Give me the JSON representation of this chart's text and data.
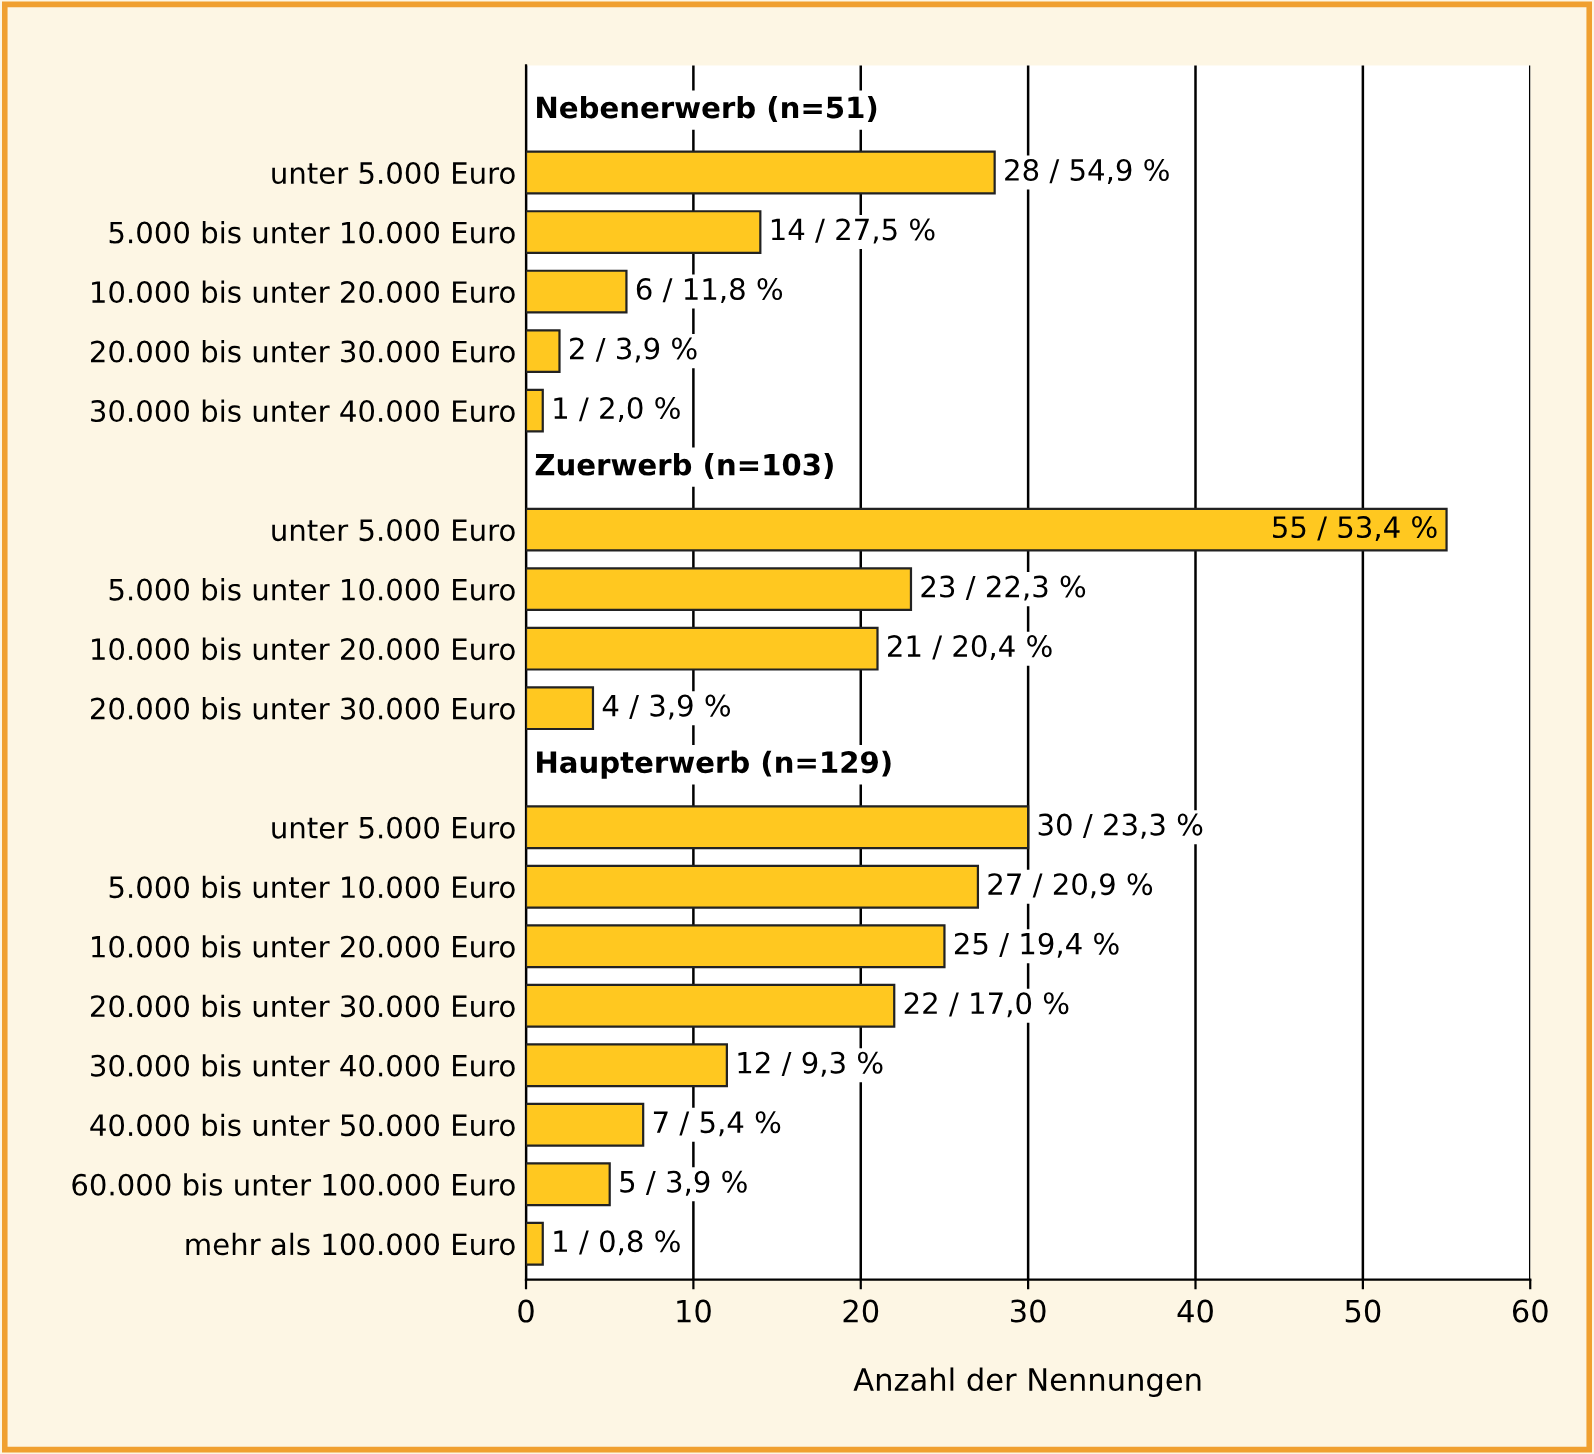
{
  "chart_data": {
    "type": "bar",
    "orientation": "horizontal",
    "xlabel": "Anzahl der Nennungen",
    "categories": [
      "Nebenerwerb (n=51)",
      "unter 5.000 Euro",
      "5.000 bis unter 10.000 Euro",
      "10.000 bis unter 20.000 Euro",
      "20.000 bis unter 30.000 Euro",
      "30.000 bis unter 40.000 Euro",
      "Zuerwerb (n=103)",
      "unter 5.000 Euro",
      "5.000 bis unter 10.000 Euro",
      "10.000 bis unter 20.000 Euro",
      "20.000 bis unter 30.000 Euro",
      "Haupterwerb (n=129)",
      "unter 5.000 Euro",
      "5.000 bis unter 10.000 Euro",
      "10.000 bis unter 20.000 Euro",
      "20.000 bis unter 30.000 Euro",
      "30.000 bis unter 40.000 Euro",
      "40.000 bis unter 50.000 Euro",
      "60.000 bis unter 100.000 Euro",
      "mehr als 100.000 Euro"
    ],
    "values": [
      null,
      28,
      14,
      6,
      2,
      1,
      null,
      55,
      23,
      21,
      4,
      null,
      30,
      27,
      25,
      22,
      12,
      7,
      5,
      1
    ],
    "value_labels": [
      null,
      "28 / 54,9 %",
      "14 / 27,5 %",
      "6 / 11,8 %",
      "2 / 3,9 %",
      "1 / 2,0 %",
      null,
      "55 / 53,4 %",
      "23 / 22,3 %",
      "21 / 20,4 %",
      "4 / 3,9 %",
      null,
      "30 / 23,3 %",
      "27 / 20,9 %",
      "25 / 19,4 %",
      "22 / 17,0 %",
      "12 / 9,3 %",
      "7 / 5,4 %",
      "5 / 3,9 %",
      "1 / 0,8 %"
    ],
    "color": "#ffc820",
    "xlim": [
      0,
      60
    ],
    "xticks": [
      0,
      10,
      20,
      30,
      40,
      50,
      60
    ],
    "grid": "x",
    "legend": false
  }
}
